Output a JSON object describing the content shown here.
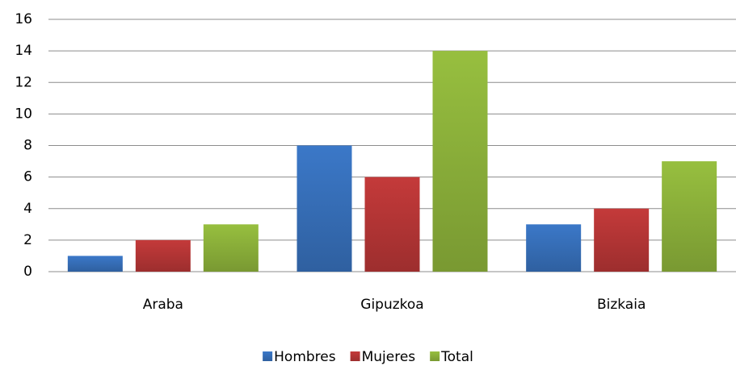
{
  "chart_data": {
    "type": "bar",
    "categories": [
      "Araba",
      "Gipuzkoa",
      "Bizkaia"
    ],
    "series": [
      {
        "name": "Hombres",
        "color": "#3b78c8",
        "values": [
          1,
          8,
          3
        ]
      },
      {
        "name": "Mujeres",
        "color": "#c43a3a",
        "values": [
          2,
          6,
          4
        ]
      },
      {
        "name": "Total",
        "color": "#97bf3f",
        "values": [
          3,
          14,
          7
        ]
      }
    ],
    "ylim": [
      0,
      16
    ],
    "yticks": [
      0,
      2,
      4,
      6,
      8,
      10,
      12,
      14,
      16
    ],
    "grid": true,
    "legend": "bottom"
  }
}
